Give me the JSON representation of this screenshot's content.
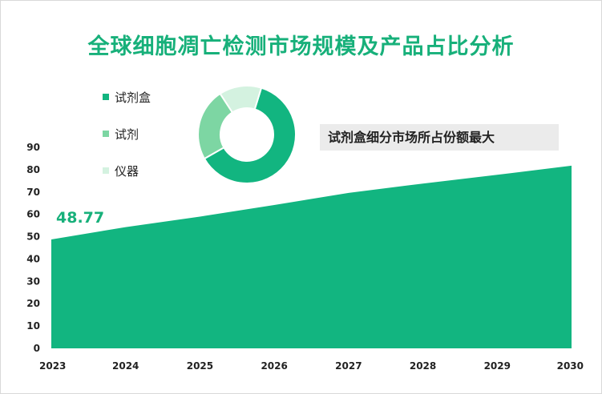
{
  "title": "全球细胞凋亡检测市场规模及产品占比分析",
  "callout": "试剂盒细分市场所占份额最大",
  "chart_data": [
    {
      "type": "area",
      "x": [
        "2023",
        "2024",
        "2025",
        "2026",
        "2027",
        "2028",
        "2029",
        "2030"
      ],
      "values": [
        48.77,
        54.3,
        59.0,
        64.2,
        69.6,
        73.8,
        77.7,
        81.8
      ],
      "ylim": [
        0,
        90
      ],
      "yticks": [
        0,
        10,
        20,
        30,
        40,
        50,
        60,
        70,
        80,
        90
      ],
      "data_labels": [
        {
          "index": 0,
          "text": "48.77"
        }
      ],
      "color": "#12b580",
      "grid": false
    },
    {
      "type": "pie",
      "subtype": "donut",
      "labels": [
        "试剂盒",
        "试剂",
        "仪器"
      ],
      "values": [
        62,
        24,
        14
      ],
      "colors": [
        "#12b580",
        "#7dd6a3",
        "#d4f2e0"
      ],
      "legend": "left"
    }
  ]
}
